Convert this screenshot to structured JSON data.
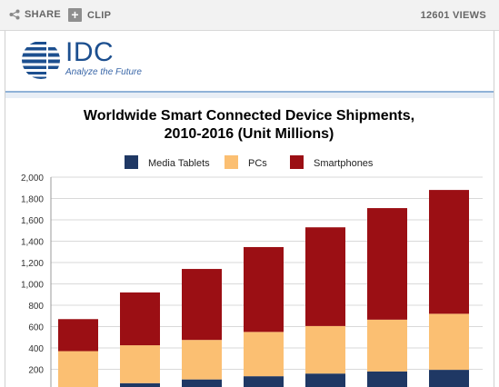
{
  "toolbar": {
    "share_label": "SHARE",
    "clip_label": "CLIP",
    "clip_glyph": "+",
    "views_label": "12601 VIEWS"
  },
  "logo": {
    "word": "IDC",
    "tagline": "Analyze the Future",
    "color": "#1c4f8f"
  },
  "chart_data": {
    "type": "bar",
    "stacked": true,
    "title_lines": [
      "Worldwide Smart Connected Device Shipments,",
      "2010-2016 (Unit Millions)"
    ],
    "xlabel": "",
    "ylabel": "",
    "categories": [
      "",
      "",
      "",
      "",
      "",
      "",
      ""
    ],
    "ylim": [
      0,
      2000
    ],
    "yticks": [
      200,
      400,
      600,
      800,
      1000,
      1200,
      1400,
      1600,
      1800,
      2000
    ],
    "ytick_labels": [
      "200",
      "400",
      "600",
      "800",
      "1,000",
      "1,200",
      "1,400",
      "1,600",
      "1,800",
      "2,000"
    ],
    "grid": true,
    "legend_position": "top",
    "series": [
      {
        "name": "Media Tablets",
        "color": "#1f3864",
        "values": [
          18,
          70,
          105,
          135,
          160,
          180,
          195
        ]
      },
      {
        "name": "PCs",
        "color": "#fbbf72",
        "values": [
          352,
          355,
          370,
          415,
          445,
          485,
          525
        ]
      },
      {
        "name": "Smartphones",
        "color": "#9b0f14",
        "values": [
          300,
          495,
          665,
          795,
          925,
          1045,
          1160
        ]
      }
    ]
  }
}
